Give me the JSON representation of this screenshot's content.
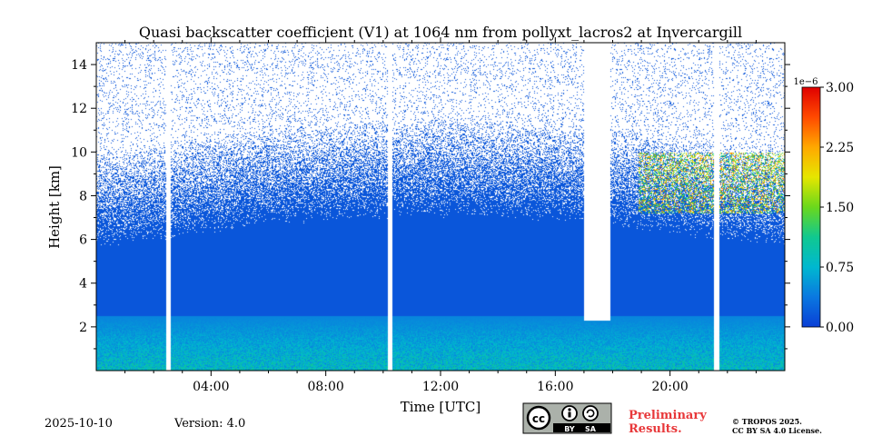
{
  "chart_data": {
    "type": "heatmap",
    "title": "Quasi backscatter coefficient (V1) at 1064 nm from pollyxt_lacros2 at Invercargill",
    "xlabel": "Time [UTC]",
    "ylabel": "Height [km]",
    "x_unit": "hours UTC",
    "xlim": [
      0,
      24
    ],
    "ylim": [
      0,
      15
    ],
    "x_ticks": [
      {
        "value": 4,
        "label": "04:00"
      },
      {
        "value": 8,
        "label": "08:00"
      },
      {
        "value": 12,
        "label": "12:00"
      },
      {
        "value": 16,
        "label": "16:00"
      },
      {
        "value": 20,
        "label": "20:00"
      }
    ],
    "y_ticks": [
      {
        "value": 2,
        "label": "2"
      },
      {
        "value": 4,
        "label": "4"
      },
      {
        "value": 6,
        "label": "6"
      },
      {
        "value": 8,
        "label": "8"
      },
      {
        "value": 10,
        "label": "10"
      },
      {
        "value": 12,
        "label": "12"
      },
      {
        "value": 14,
        "label": "14"
      }
    ],
    "colorbar": {
      "exponent_label": "1e−6",
      "range": [
        0.0,
        3.0
      ],
      "ticks": [
        {
          "value": 0.0,
          "label": "0.00"
        },
        {
          "value": 0.75,
          "label": "0.75"
        },
        {
          "value": 1.5,
          "label": "1.50"
        },
        {
          "value": 2.25,
          "label": "2.25"
        },
        {
          "value": 3.0,
          "label": "3.00"
        }
      ],
      "colors": [
        "#0a3fd6",
        "#0a78e0",
        "#00b8d0",
        "#10c890",
        "#6ad81c",
        "#e6e600",
        "#ffa800",
        "#ff4a00",
        "#e00000"
      ]
    },
    "no_data_gaps_utc": [
      [
        2.42,
        2.58
      ],
      [
        10.15,
        10.32
      ],
      [
        21.52,
        21.7
      ]
    ],
    "clear_column_utc": [
      17.0,
      17.9
    ],
    "cloud_layer": {
      "x_range_utc": [
        18.9,
        24.0
      ],
      "height_km": [
        7.2,
        10.0
      ]
    },
    "boundary_layer_height_km": 2.5
  },
  "footer": {
    "date": "2025-10-10",
    "version": "Version: 4.0",
    "cc_badge": "cc",
    "by_label": "BY",
    "sa_label": "SA",
    "preliminary_line1": "Preliminary",
    "preliminary_line2": "Results.",
    "copyright_line1": "© TROPOS 2025.",
    "copyright_line2": "CC BY SA 4.0 License."
  }
}
